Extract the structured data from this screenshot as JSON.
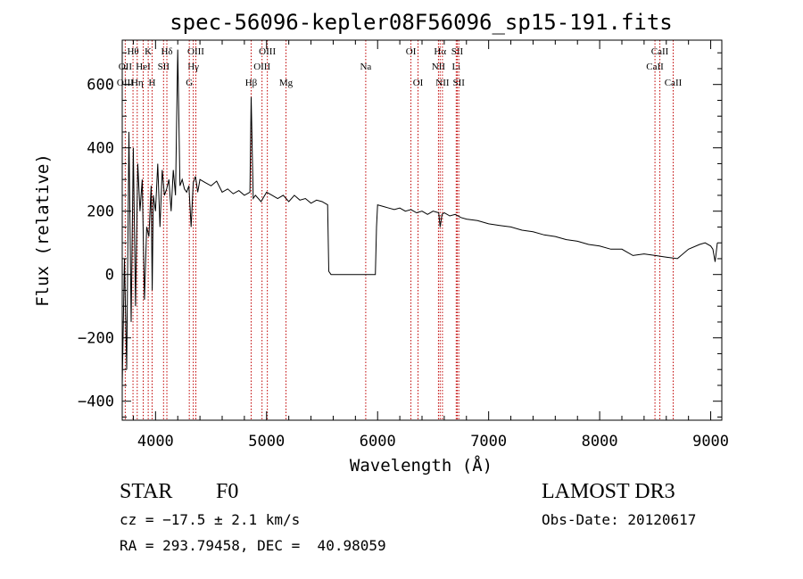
{
  "chart_data": {
    "type": "line",
    "title": "spec-56096-kepler08F56096_sp15-191.fits",
    "xlabel": "Wavelength (Å)",
    "ylabel": "Flux (relative)",
    "xlim": [
      3700,
      9100
    ],
    "ylim": [
      -460,
      740
    ],
    "xticks": [
      4000,
      5000,
      6000,
      7000,
      8000,
      9000
    ],
    "xtick_labels": [
      "4000",
      "5000",
      "6000",
      "7000",
      "8000",
      "9000"
    ],
    "yticks": [
      -400,
      -200,
      0,
      200,
      400,
      600
    ],
    "ytick_labels": [
      "−400",
      "−200",
      "0",
      "200",
      "400",
      "600"
    ],
    "series": [
      {
        "name": "flux",
        "x": [
          3700,
          3720,
          3740,
          3760,
          3780,
          3800,
          3820,
          3840,
          3860,
          3880,
          3900,
          3920,
          3940,
          3960,
          3970,
          3980,
          4000,
          4020,
          4040,
          4060,
          4080,
          4100,
          4120,
          4140,
          4160,
          4180,
          4200,
          4220,
          4240,
          4260,
          4280,
          4300,
          4320,
          4340,
          4360,
          4380,
          4400,
          4450,
          4500,
          4550,
          4600,
          4650,
          4700,
          4750,
          4800,
          4850,
          4861,
          4880,
          4900,
          4950,
          5000,
          5050,
          5100,
          5150,
          5200,
          5250,
          5300,
          5350,
          5400,
          5450,
          5500,
          5550,
          5560,
          5580,
          5600,
          5700,
          5800,
          5900,
          5980,
          5990,
          6000,
          6050,
          6100,
          6150,
          6200,
          6250,
          6300,
          6350,
          6400,
          6450,
          6500,
          6550,
          6563,
          6580,
          6600,
          6650,
          6700,
          6750,
          6800,
          6900,
          7000,
          7100,
          7200,
          7300,
          7400,
          7500,
          7600,
          7700,
          7800,
          7900,
          8000,
          8100,
          8200,
          8300,
          8400,
          8500,
          8600,
          8700,
          8800,
          8900,
          8950,
          9000,
          9020,
          9040,
          9060
        ],
        "values": [
          -350,
          50,
          -300,
          450,
          -150,
          400,
          -100,
          350,
          200,
          300,
          -80,
          150,
          120,
          280,
          -50,
          250,
          200,
          350,
          150,
          330,
          250,
          270,
          300,
          200,
          330,
          250,
          710,
          280,
          300,
          270,
          260,
          280,
          150,
          290,
          310,
          260,
          300,
          290,
          280,
          295,
          260,
          270,
          255,
          265,
          250,
          260,
          560,
          240,
          250,
          230,
          260,
          250,
          240,
          250,
          230,
          250,
          235,
          240,
          225,
          235,
          230,
          220,
          10,
          0,
          0,
          0,
          0,
          0,
          0,
          150,
          220,
          215,
          210,
          205,
          210,
          200,
          205,
          195,
          200,
          190,
          200,
          195,
          150,
          190,
          195,
          185,
          190,
          180,
          175,
          170,
          160,
          155,
          150,
          140,
          135,
          125,
          120,
          110,
          105,
          95,
          90,
          80,
          80,
          60,
          65,
          60,
          55,
          50,
          80,
          95,
          100,
          90,
          80,
          40,
          100
        ]
      }
    ],
    "lines": [
      {
        "name": "Hθ",
        "x": 3797,
        "row": 1
      },
      {
        "name": "OII",
        "x": 3727,
        "row": 2
      },
      {
        "name": "OIII",
        "x": 3727,
        "row": 3
      },
      {
        "name": "Hη",
        "x": 3835,
        "row": 3
      },
      {
        "name": "HeI",
        "x": 3889,
        "row": 2
      },
      {
        "name": "K",
        "x": 3934,
        "row": 1
      },
      {
        "name": "H",
        "x": 3969,
        "row": 3
      },
      {
        "name": "SII",
        "x": 4072,
        "row": 2
      },
      {
        "name": "Hδ",
        "x": 4102,
        "row": 1
      },
      {
        "name": "Hγ",
        "x": 4340,
        "row": 2
      },
      {
        "name": "OIII",
        "x": 4363,
        "row": 1
      },
      {
        "name": "G",
        "x": 4304,
        "row": 3
      },
      {
        "name": "Hβ",
        "x": 4861,
        "row": 3
      },
      {
        "name": "OIII",
        "x": 5007,
        "row": 1
      },
      {
        "name": "OIII",
        "x": 4959,
        "row": 2
      },
      {
        "name": "Mg",
        "x": 5175,
        "row": 3
      },
      {
        "name": "Na",
        "x": 5893,
        "row": 2
      },
      {
        "name": "OI",
        "x": 6300,
        "row": 1
      },
      {
        "name": "OI",
        "x": 6364,
        "row": 3
      },
      {
        "name": "Hα",
        "x": 6563,
        "row": 1
      },
      {
        "name": "NII",
        "x": 6548,
        "row": 2
      },
      {
        "name": "NII",
        "x": 6584,
        "row": 3
      },
      {
        "name": "SII",
        "x": 6717,
        "row": 1
      },
      {
        "name": "Li",
        "x": 6708,
        "row": 2
      },
      {
        "name": "SII",
        "x": 6731,
        "row": 3
      },
      {
        "name": "CaII",
        "x": 8542,
        "row": 1
      },
      {
        "name": "CaII",
        "x": 8498,
        "row": 2
      },
      {
        "name": "CaII",
        "x": 8662,
        "row": 3
      }
    ]
  },
  "info": {
    "class_label": "STAR",
    "subclass": "F0",
    "survey": "LAMOST DR3",
    "cz": "cz = −17.5 ± 2.1 km/s",
    "obs_date": "Obs-Date: 20120617",
    "radec": "RA = 293.79458, DEC =  40.98059"
  }
}
